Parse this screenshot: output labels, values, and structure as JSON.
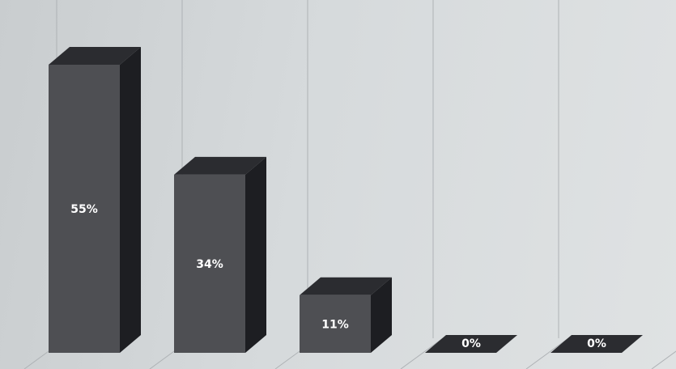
{
  "chart_data": {
    "type": "bar",
    "style": "3d-column",
    "categories": [
      "",
      "",
      "",
      "",
      ""
    ],
    "values": [
      55,
      34,
      11,
      0,
      0
    ],
    "data_labels": [
      "55%",
      "34%",
      "11%",
      "0%",
      "0%"
    ],
    "ylim": [
      0,
      60
    ],
    "grid": true,
    "legend": "none",
    "colors": {
      "bar_front": "#4e4f53",
      "bar_top": "#2b2c30",
      "bar_side": "#1d1e22",
      "grid": "#aeb2b5"
    }
  }
}
